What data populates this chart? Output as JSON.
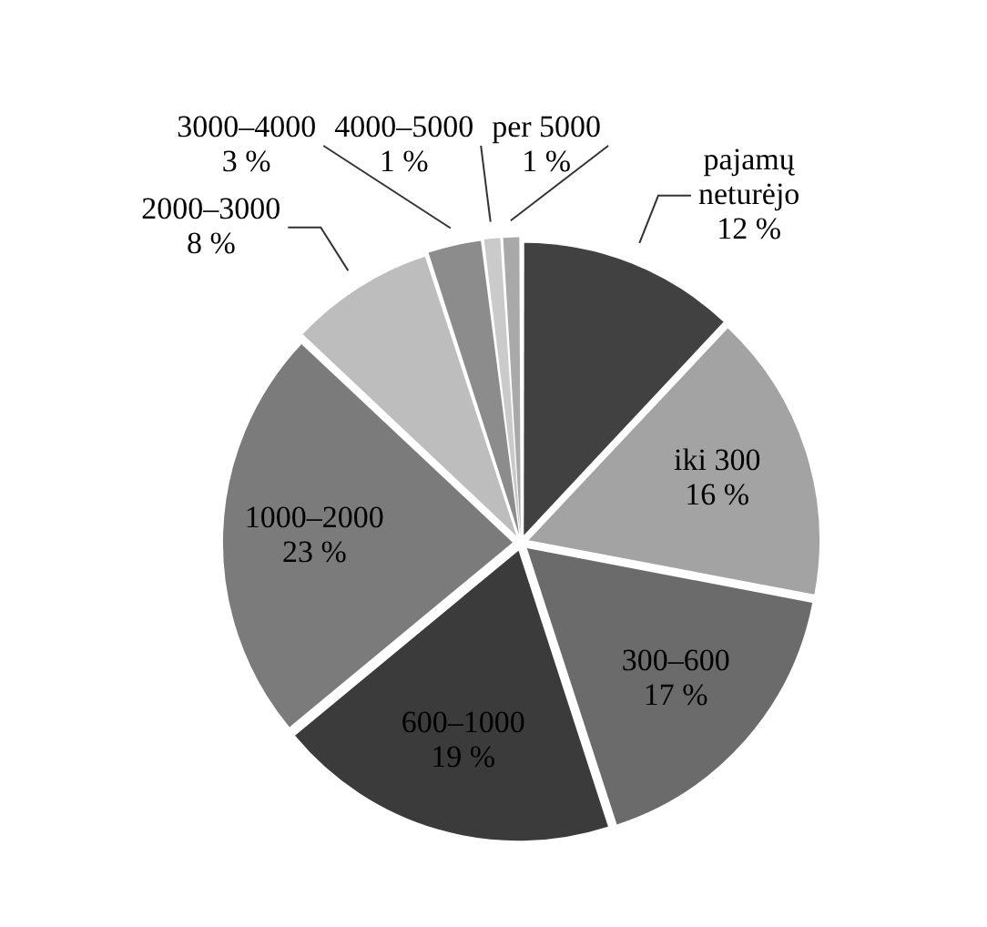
{
  "chart_data": {
    "type": "pie",
    "categories": [
      "pajamų neturėjo",
      "iki 300",
      "300–600",
      "600–1000",
      "1000–2000",
      "2000–3000",
      "3000–4000",
      "4000–5000",
      "per 5000"
    ],
    "values": [
      12,
      16,
      17,
      19,
      23,
      8,
      3,
      1,
      1
    ],
    "colors": [
      "#414141",
      "#a3a3a3",
      "#6b6b6b",
      "#3b3b3b",
      "#7b7b7b",
      "#bdbdbd",
      "#8c8c8c",
      "#cacaca",
      "#a9a9a9"
    ],
    "value_labels": [
      "12 %",
      "16 %",
      "17 %",
      "19 %",
      "23 %",
      "8 %",
      "3 %",
      "1 %",
      "1 %"
    ]
  }
}
